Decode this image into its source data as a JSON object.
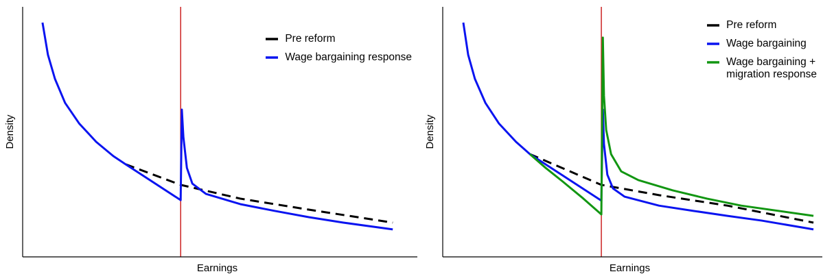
{
  "chart_data": [
    {
      "type": "line",
      "xlabel": "Earnings",
      "ylabel": "Density",
      "xlim": [
        0,
        100
      ],
      "ylim": [
        0,
        100
      ],
      "threshold": 40.6,
      "threshold_color": "#cc2222",
      "legend": "upper right",
      "series": [
        {
          "name": "Pre reform",
          "color": "#000000",
          "dashed": true,
          "x": [
            26.5,
            40.6,
            55.9,
            73.5,
            95.1
          ],
          "values": [
            37.0,
            28.8,
            23.3,
            18.9,
            13.7
          ]
        },
        {
          "name": "Wage bargaining response",
          "color": "#0a14f0",
          "dashed": false,
          "x": [
            5.1,
            6.5,
            8.3,
            10.9,
            14.5,
            18.9,
            23.3,
            26.5,
            40.6,
            40.9,
            41.3,
            42.2,
            43.6,
            47.1,
            55.9,
            64.7,
            73.5,
            82.4,
            95.1
          ],
          "values": [
            93.7,
            80.8,
            71.2,
            61.6,
            53.4,
            46.0,
            40.3,
            37.0,
            22.7,
            58.9,
            47.9,
            35.6,
            29.3,
            25.2,
            21.1,
            18.4,
            15.9,
            13.7,
            11.0
          ]
        }
      ]
    },
    {
      "type": "line",
      "xlabel": "Earnings",
      "ylabel": "Density",
      "xlim": [
        0,
        100
      ],
      "ylim": [
        0,
        100
      ],
      "threshold": 42.4,
      "threshold_color": "#cc2222",
      "legend": "upper right",
      "series": [
        {
          "name": "Pre reform",
          "color": "#000000",
          "dashed": true,
          "x": [
            23.3,
            42.4,
            57.8,
            76.1,
            99.1
          ],
          "values": [
            41.1,
            28.8,
            24.7,
            20.5,
            13.7
          ]
        },
        {
          "name": "Wage bargaining",
          "color": "#0a14f0",
          "dashed": false,
          "x": [
            5.5,
            6.8,
            8.6,
            11.4,
            15.0,
            19.6,
            23.3,
            42.4,
            42.8,
            43.1,
            44.0,
            45.5,
            48.6,
            57.8,
            67.0,
            76.1,
            85.3,
            99.1
          ],
          "values": [
            93.7,
            80.8,
            71.2,
            61.6,
            53.4,
            46.0,
            41.1,
            22.5,
            58.9,
            45.2,
            32.9,
            27.4,
            24.1,
            20.5,
            18.4,
            16.4,
            14.5,
            11.0
          ]
        },
        {
          "name": "Wage bargaining +\nmigration response",
          "color": "#129612",
          "dashed": false,
          "x": [
            23.3,
            27.5,
            32.1,
            37.6,
            42.4,
            42.8,
            43.1,
            43.7,
            45.0,
            47.7,
            52.3,
            61.5,
            70.6,
            79.8,
            99.1
          ],
          "values": [
            41.1,
            35.6,
            30.1,
            23.3,
            17.0,
            87.7,
            64.4,
            50.7,
            41.1,
            34.2,
            30.7,
            26.6,
            23.3,
            20.5,
            16.4
          ]
        }
      ]
    }
  ]
}
